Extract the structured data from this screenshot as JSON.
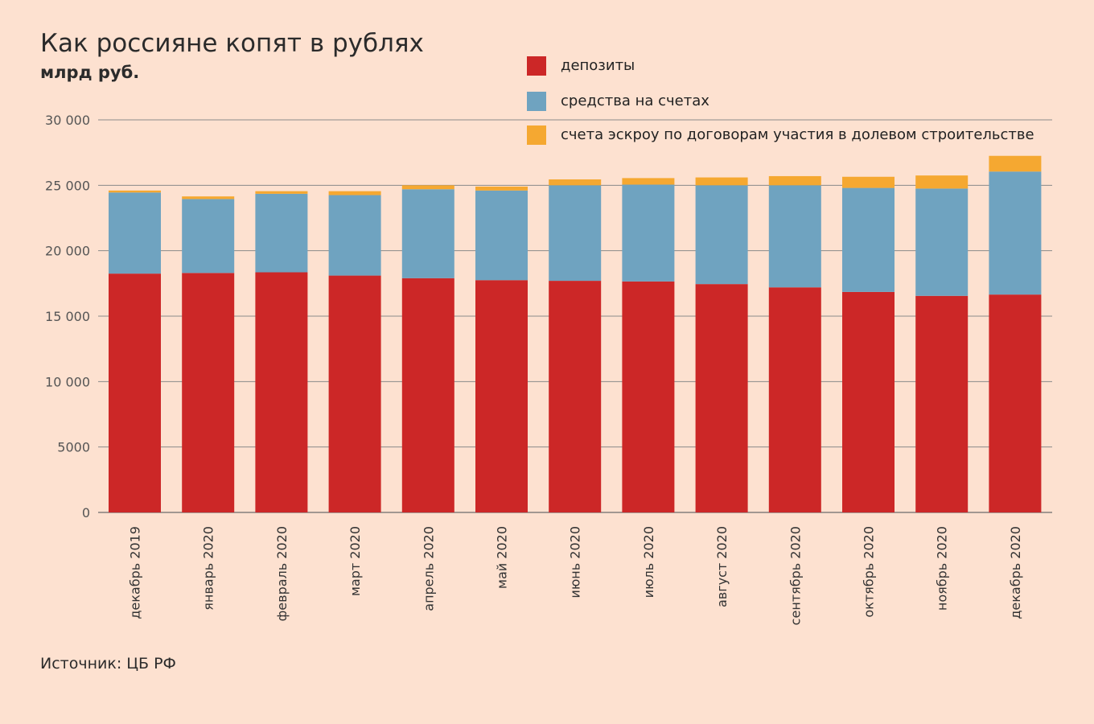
{
  "page": {
    "title": "Как россияне копят в рублях",
    "subtitle": "млрд руб.",
    "source": "Источник: ЦБ РФ",
    "background": "#fde1d0"
  },
  "chart_data": {
    "type": "bar",
    "stacked": true,
    "title": "Как россияне копят в рублях",
    "ylabel": "млрд руб.",
    "xlabel": "",
    "ylim": [
      0,
      30000
    ],
    "yticks": [
      0,
      5000,
      10000,
      15000,
      20000,
      25000,
      30000
    ],
    "ytick_labels": [
      "0",
      "5000",
      "10 000",
      "15 000",
      "20 000",
      "25 000",
      "30 000"
    ],
    "grid": true,
    "legend_position": "top-right",
    "categories": [
      "декабрь 2019",
      "январь 2020",
      "февраль 2020",
      "март 2020",
      "апрель 2020",
      "май 2020",
      "июнь 2020",
      "июль 2020",
      "август 2020",
      "сентябрь 2020",
      "октябрь 2020",
      "ноябрь 2020",
      "декабрь 2020"
    ],
    "series": [
      {
        "name": "депозиты",
        "color": "#cc2727",
        "values": [
          18250,
          18300,
          18350,
          18100,
          17900,
          17750,
          17700,
          17650,
          17450,
          17200,
          16850,
          16550,
          16650
        ]
      },
      {
        "name": "средства на счетах",
        "color": "#6fa3c0",
        "values": [
          6200,
          5650,
          6000,
          6150,
          6800,
          6850,
          7300,
          7400,
          7550,
          7800,
          7950,
          8200,
          9400
        ]
      },
      {
        "name": "счета эскроу по договорам участия в долевом строительстве",
        "color": "#f5a831",
        "values": [
          150,
          200,
          200,
          300,
          300,
          300,
          450,
          500,
          600,
          700,
          850,
          1000,
          1200
        ]
      }
    ]
  }
}
